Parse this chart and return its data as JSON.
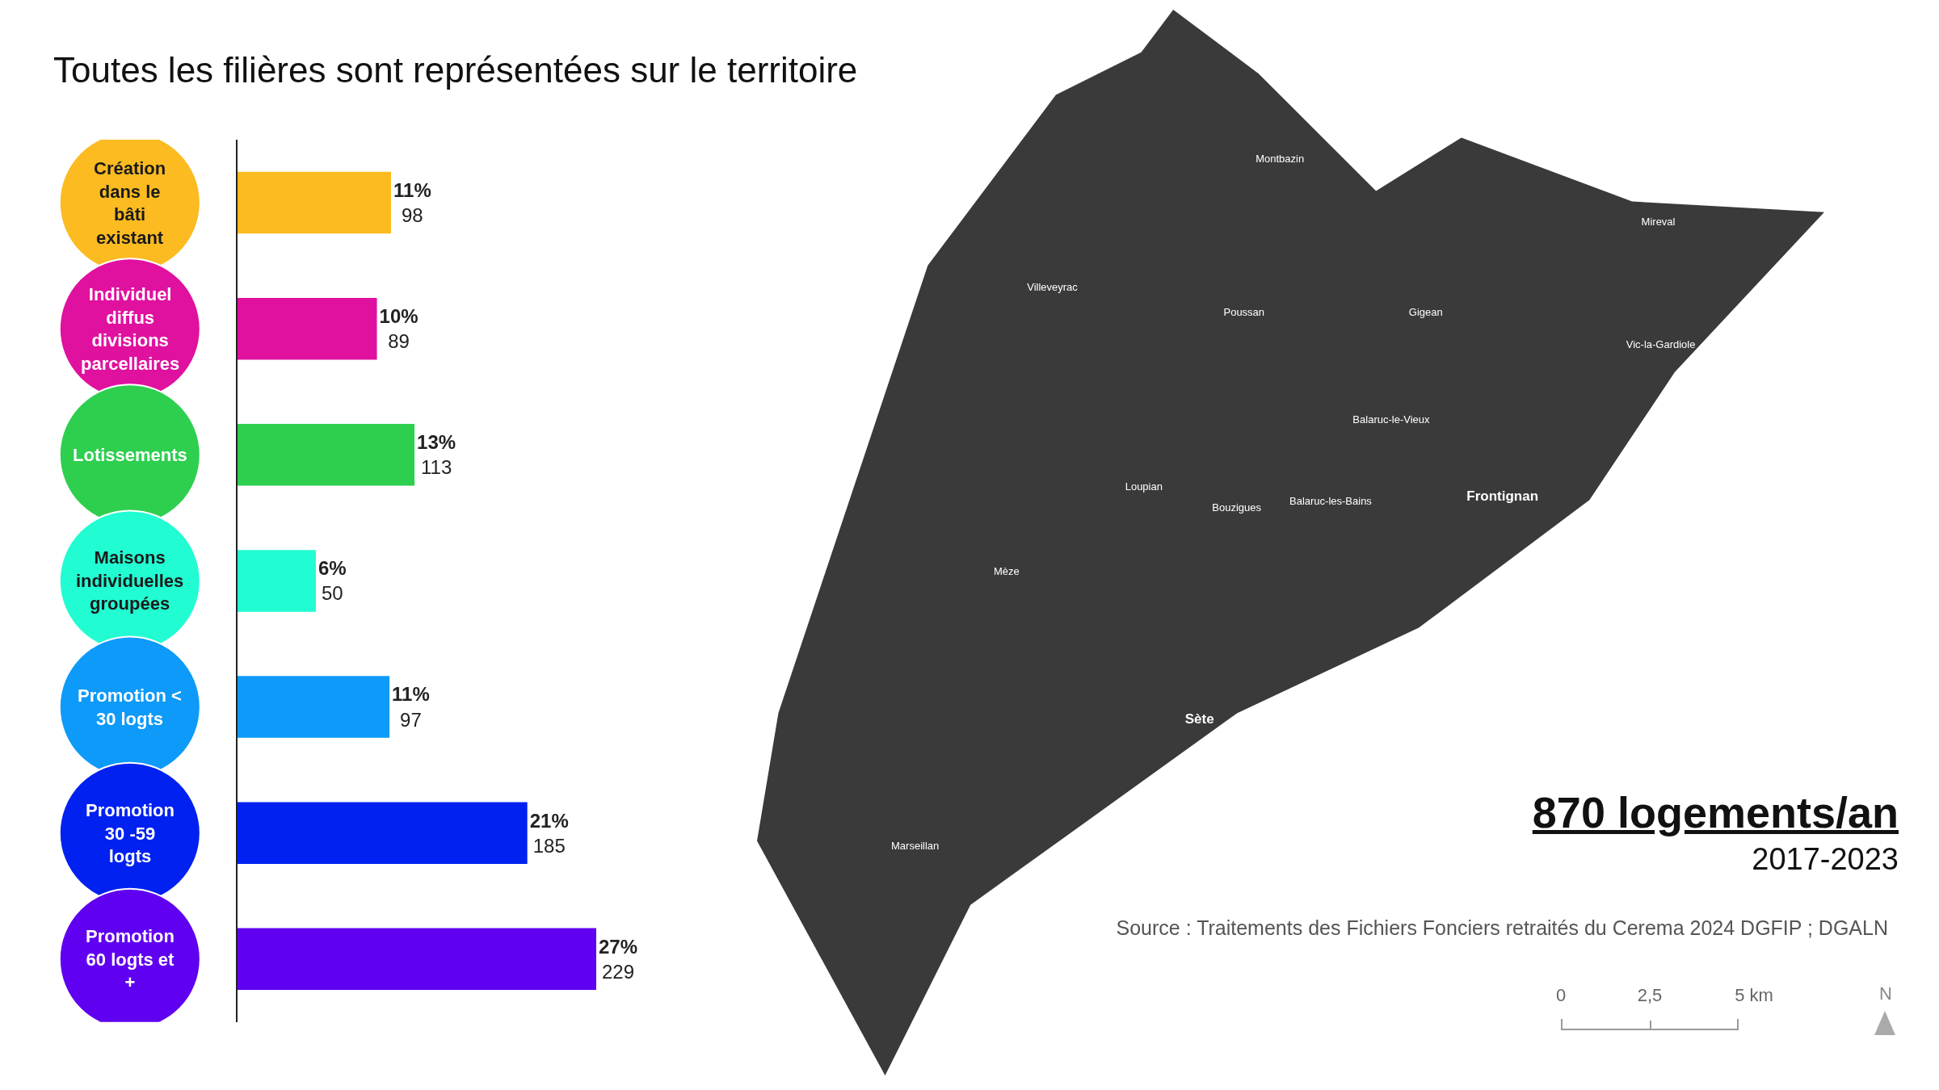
{
  "chart_data": {
    "type": "bar",
    "orientation": "horizontal",
    "title": "Toutes les filières sont représentées sur le territoire",
    "categories": [
      "Création dans le bâti existant",
      "Individuel diffus divisions parcellaires",
      "Lotissements",
      "Maisons individuelles groupées",
      "Promotion < 30 logts",
      "Promotion 30 -59 logts",
      "Promotion 60 logts et +"
    ],
    "values": [
      98,
      89,
      113,
      50,
      97,
      185,
      229
    ],
    "value_labels": [
      "11%\n98",
      "10%\n89",
      "13%\n113",
      "6%\n50",
      "11%\n97",
      "21%\n185",
      "27%\n229"
    ],
    "colors": [
      "#fbbb21",
      "#e0119f",
      "#2ecf4f",
      "#22fcd2",
      "#0d9af9",
      "#0021f0",
      "#6000f0"
    ],
    "annotations": [
      "870 logements/an",
      "2017-2023",
      "Source : Traitements des Fichiers Fonciers retraités du Cerema 2024 DGFIP ; DGALN",
      "0",
      "2,5",
      "5 km",
      "N",
      "Montbazin",
      "Mireval",
      "Villeveyrac",
      "Poussan",
      "Gigean",
      "Vic-la-Gardiole",
      "Balaruc-le-Vieux",
      "Loupian",
      "Bouzigues",
      "Balaruc-les-Bains",
      "Frontignan",
      "Mèze",
      "Sète",
      "Marseillan"
    ],
    "grid": false,
    "legend": false
  }
}
